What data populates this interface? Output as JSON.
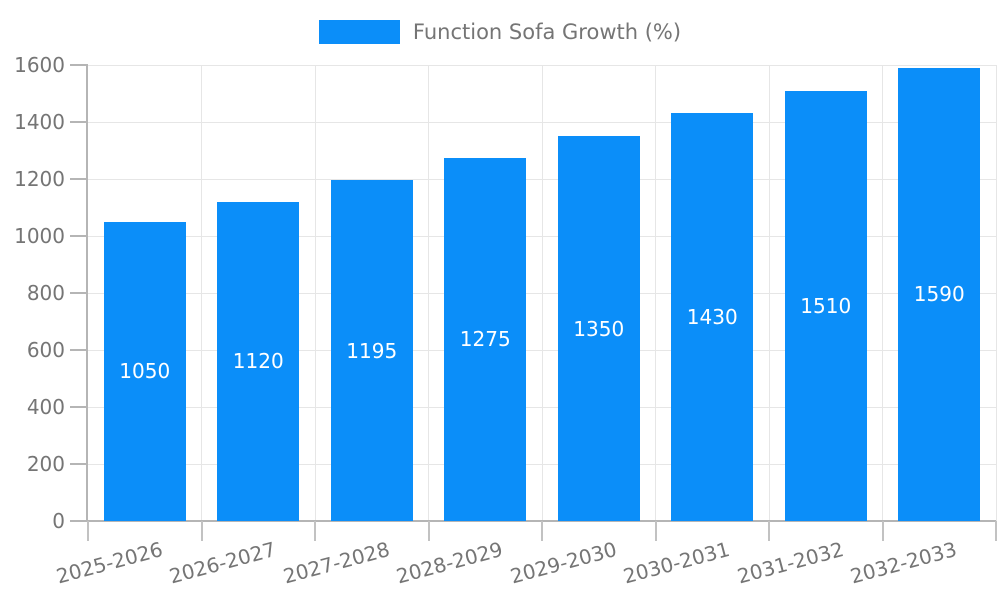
{
  "legend": {
    "label": "Function Sofa Growth (%)"
  },
  "colors": {
    "bar": "#0b8ef9",
    "grid": "#e6e6e6",
    "axis_line": "#b5b5b5",
    "x_tick": "#c2c2c2",
    "axis_text": "#757575",
    "value_text": "#ffffff"
  },
  "chart_data": {
    "type": "bar",
    "title": "Function Sofa Growth (%)",
    "categories": [
      "2025-2026",
      "2026-2027",
      "2027-2028",
      "2028-2029",
      "2029-2030",
      "2030-2031",
      "2031-2032",
      "2032-2033"
    ],
    "values": [
      1050,
      1120,
      1195,
      1275,
      1350,
      1430,
      1510,
      1590
    ],
    "xlabel": "",
    "ylabel": "",
    "ylim": [
      0,
      1600
    ],
    "ytick_step": 200,
    "yticks": [
      0,
      200,
      400,
      600,
      800,
      1000,
      1200,
      1400,
      1600
    ],
    "grid": true,
    "legend_position": "top-center",
    "value_label_position": "inside-center",
    "x_label_rotation_deg": -15
  }
}
